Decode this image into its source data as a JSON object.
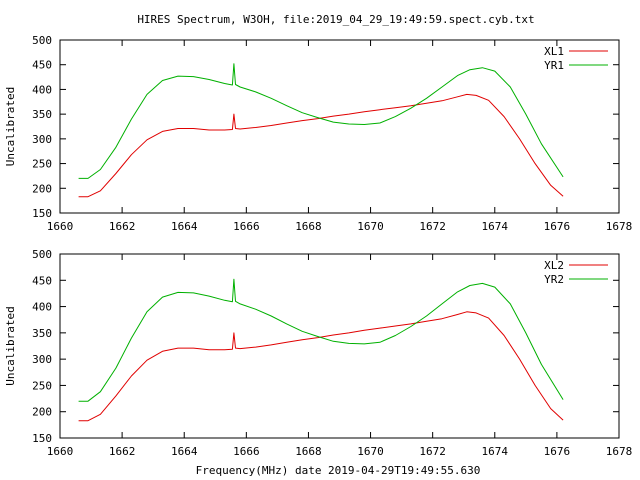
{
  "title": "HIRES Spectrum, W3OH, file:2019_04_29_19:49:59.spect.cyb.txt",
  "xlabel": "Frequency(MHz) date 2019-04-29T19:49:55.630",
  "ylabel": "Uncalibrated",
  "colors": {
    "red": "#e00000",
    "green": "#00b000"
  },
  "chart_data": [
    {
      "type": "line",
      "ylabel": "Uncalibrated",
      "xlim": [
        1660,
        1678
      ],
      "ylim": [
        150,
        500
      ],
      "xticks": [
        1660,
        1662,
        1664,
        1666,
        1668,
        1670,
        1672,
        1674,
        1676,
        1678
      ],
      "yticks": [
        150,
        200,
        250,
        300,
        350,
        400,
        450,
        500
      ],
      "legend": "top-right",
      "series": [
        {
          "name": "XL1",
          "color": "red",
          "x": [
            1660.6,
            1660.9,
            1661.3,
            1661.8,
            1662.3,
            1662.8,
            1663.3,
            1663.8,
            1664.3,
            1664.8,
            1665.3,
            1665.55,
            1665.6,
            1665.65,
            1665.8,
            1666.3,
            1666.8,
            1667.3,
            1667.8,
            1668.3,
            1668.8,
            1669.3,
            1669.8,
            1670.3,
            1670.8,
            1671.3,
            1671.8,
            1672.3,
            1672.8,
            1673.1,
            1673.4,
            1673.8,
            1674.3,
            1674.8,
            1675.3,
            1675.8,
            1676.2
          ],
          "y": [
            183,
            183,
            195,
            230,
            268,
            298,
            315,
            321,
            321,
            318,
            318,
            319,
            350,
            321,
            320,
            323,
            327,
            332,
            337,
            341,
            346,
            350,
            355,
            359,
            363,
            367,
            372,
            377,
            385,
            390,
            388,
            378,
            345,
            300,
            250,
            206,
            184
          ]
        },
        {
          "name": "YR1",
          "color": "green",
          "x": [
            1660.6,
            1660.9,
            1661.3,
            1661.8,
            1662.3,
            1662.8,
            1663.3,
            1663.8,
            1664.3,
            1664.8,
            1665.3,
            1665.55,
            1665.6,
            1665.65,
            1665.8,
            1666.3,
            1666.8,
            1667.3,
            1667.8,
            1668.3,
            1668.8,
            1669.3,
            1669.8,
            1670.3,
            1670.8,
            1671.3,
            1671.8,
            1672.3,
            1672.8,
            1673.2,
            1673.6,
            1674.0,
            1674.5,
            1675.0,
            1675.5,
            1676.2
          ],
          "y": [
            220,
            220,
            238,
            283,
            340,
            390,
            418,
            427,
            426,
            420,
            412,
            409,
            452,
            410,
            405,
            395,
            382,
            367,
            353,
            343,
            334,
            330,
            329,
            332,
            345,
            362,
            382,
            405,
            428,
            440,
            444,
            437,
            405,
            350,
            290,
            223
          ]
        }
      ]
    },
    {
      "type": "line",
      "ylabel": "Uncalibrated",
      "xlabel": "Frequency(MHz) date 2019-04-29T19:49:55.630",
      "xlim": [
        1660,
        1678
      ],
      "ylim": [
        150,
        500
      ],
      "xticks": [
        1660,
        1662,
        1664,
        1666,
        1668,
        1670,
        1672,
        1674,
        1676,
        1678
      ],
      "yticks": [
        150,
        200,
        250,
        300,
        350,
        400,
        450,
        500
      ],
      "legend": "top-right",
      "series": [
        {
          "name": "XL2",
          "color": "red",
          "x": [
            1660.6,
            1660.9,
            1661.3,
            1661.8,
            1662.3,
            1662.8,
            1663.3,
            1663.8,
            1664.3,
            1664.8,
            1665.3,
            1665.55,
            1665.6,
            1665.65,
            1665.8,
            1666.3,
            1666.8,
            1667.3,
            1667.8,
            1668.3,
            1668.8,
            1669.3,
            1669.8,
            1670.3,
            1670.8,
            1671.3,
            1671.8,
            1672.3,
            1672.8,
            1673.1,
            1673.4,
            1673.8,
            1674.3,
            1674.8,
            1675.3,
            1675.8,
            1676.2
          ],
          "y": [
            183,
            183,
            195,
            230,
            268,
            298,
            315,
            321,
            321,
            318,
            318,
            319,
            350,
            321,
            320,
            323,
            327,
            332,
            337,
            341,
            346,
            350,
            355,
            359,
            363,
            367,
            372,
            377,
            385,
            390,
            388,
            378,
            345,
            300,
            250,
            206,
            184
          ]
        },
        {
          "name": "YR2",
          "color": "green",
          "x": [
            1660.6,
            1660.9,
            1661.3,
            1661.8,
            1662.3,
            1662.8,
            1663.3,
            1663.8,
            1664.3,
            1664.8,
            1665.3,
            1665.55,
            1665.6,
            1665.65,
            1665.8,
            1666.3,
            1666.8,
            1667.3,
            1667.8,
            1668.3,
            1668.8,
            1669.3,
            1669.8,
            1670.3,
            1670.8,
            1671.3,
            1671.8,
            1672.3,
            1672.8,
            1673.2,
            1673.6,
            1674.0,
            1674.5,
            1675.0,
            1675.5,
            1676.2
          ],
          "y": [
            220,
            220,
            238,
            283,
            340,
            390,
            418,
            427,
            426,
            420,
            412,
            409,
            452,
            410,
            405,
            395,
            382,
            367,
            353,
            343,
            334,
            330,
            329,
            332,
            345,
            362,
            382,
            405,
            428,
            440,
            444,
            437,
            405,
            350,
            290,
            223
          ]
        }
      ]
    }
  ]
}
